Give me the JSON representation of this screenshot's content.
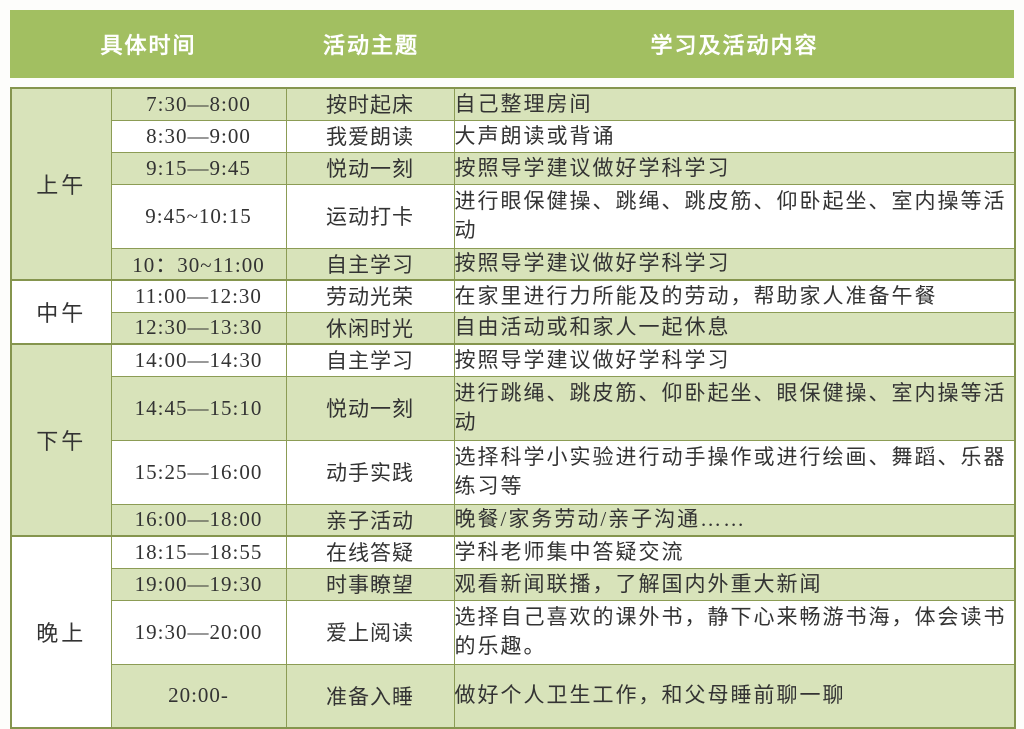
{
  "colors": {
    "header_bg": "#a2bf61",
    "header_text": "#ffffff",
    "row_green": "#d8e3ba",
    "row_white": "#ffffff",
    "border": "#8c9c55",
    "body_text": "#333333"
  },
  "table": {
    "headers": [
      "具体时间",
      "活动主题",
      "学习及活动内容"
    ],
    "groups": [
      {
        "period": "上午",
        "rows": [
          {
            "time": "7:30—8:00",
            "theme": "按时起床",
            "content": "自己整理房间"
          },
          {
            "time": "8:30—9:00",
            "theme": "我爱朗读",
            "content": "大声朗读或背诵"
          },
          {
            "time": "9:15—9:45",
            "theme": "悦动一刻",
            "content": "按照导学建议做好学科学习"
          },
          {
            "time": "9:45~10:15",
            "theme": "运动打卡",
            "content": "进行眼保健操、跳绳、跳皮筋、仰卧起坐、室内操等活动"
          },
          {
            "time": "10：30~11:00",
            "theme": "自主学习",
            "content": "按照导学建议做好学科学习"
          }
        ]
      },
      {
        "period": "中午",
        "rows": [
          {
            "time": "11:00—12:30",
            "theme": "劳动光荣",
            "content": "在家里进行力所能及的劳动，帮助家人准备午餐"
          },
          {
            "time": "12:30—13:30",
            "theme": "休闲时光",
            "content": "自由活动或和家人一起休息"
          }
        ]
      },
      {
        "period": "下午",
        "rows": [
          {
            "time": "14:00—14:30",
            "theme": "自主学习",
            "content": "按照导学建议做好学科学习"
          },
          {
            "time": "14:45—15:10",
            "theme": "悦动一刻",
            "content": "进行跳绳、跳皮筋、仰卧起坐、眼保健操、室内操等活动"
          },
          {
            "time": "15:25—16:00",
            "theme": "动手实践",
            "content": "选择科学小实验进行动手操作或进行绘画、舞蹈、乐器练习等"
          },
          {
            "time": "16:00—18:00",
            "theme": "亲子活动",
            "content": "晚餐/家务劳动/亲子沟通……"
          }
        ]
      },
      {
        "period": "晚上",
        "rows": [
          {
            "time": "18:15—18:55",
            "theme": "在线答疑",
            "content": "学科老师集中答疑交流"
          },
          {
            "time": "19:00—19:30",
            "theme": "时事瞭望",
            "content": "观看新闻联播，了解国内外重大新闻"
          },
          {
            "time": "19:30—20:00",
            "theme": "爱上阅读",
            "content": "选择自己喜欢的课外书，静下心来畅游书海，体会读书的乐趣。"
          },
          {
            "time": "20:00-",
            "theme": "准备入睡",
            "content": "做好个人卫生工作，和父母睡前聊一聊"
          }
        ]
      }
    ]
  }
}
